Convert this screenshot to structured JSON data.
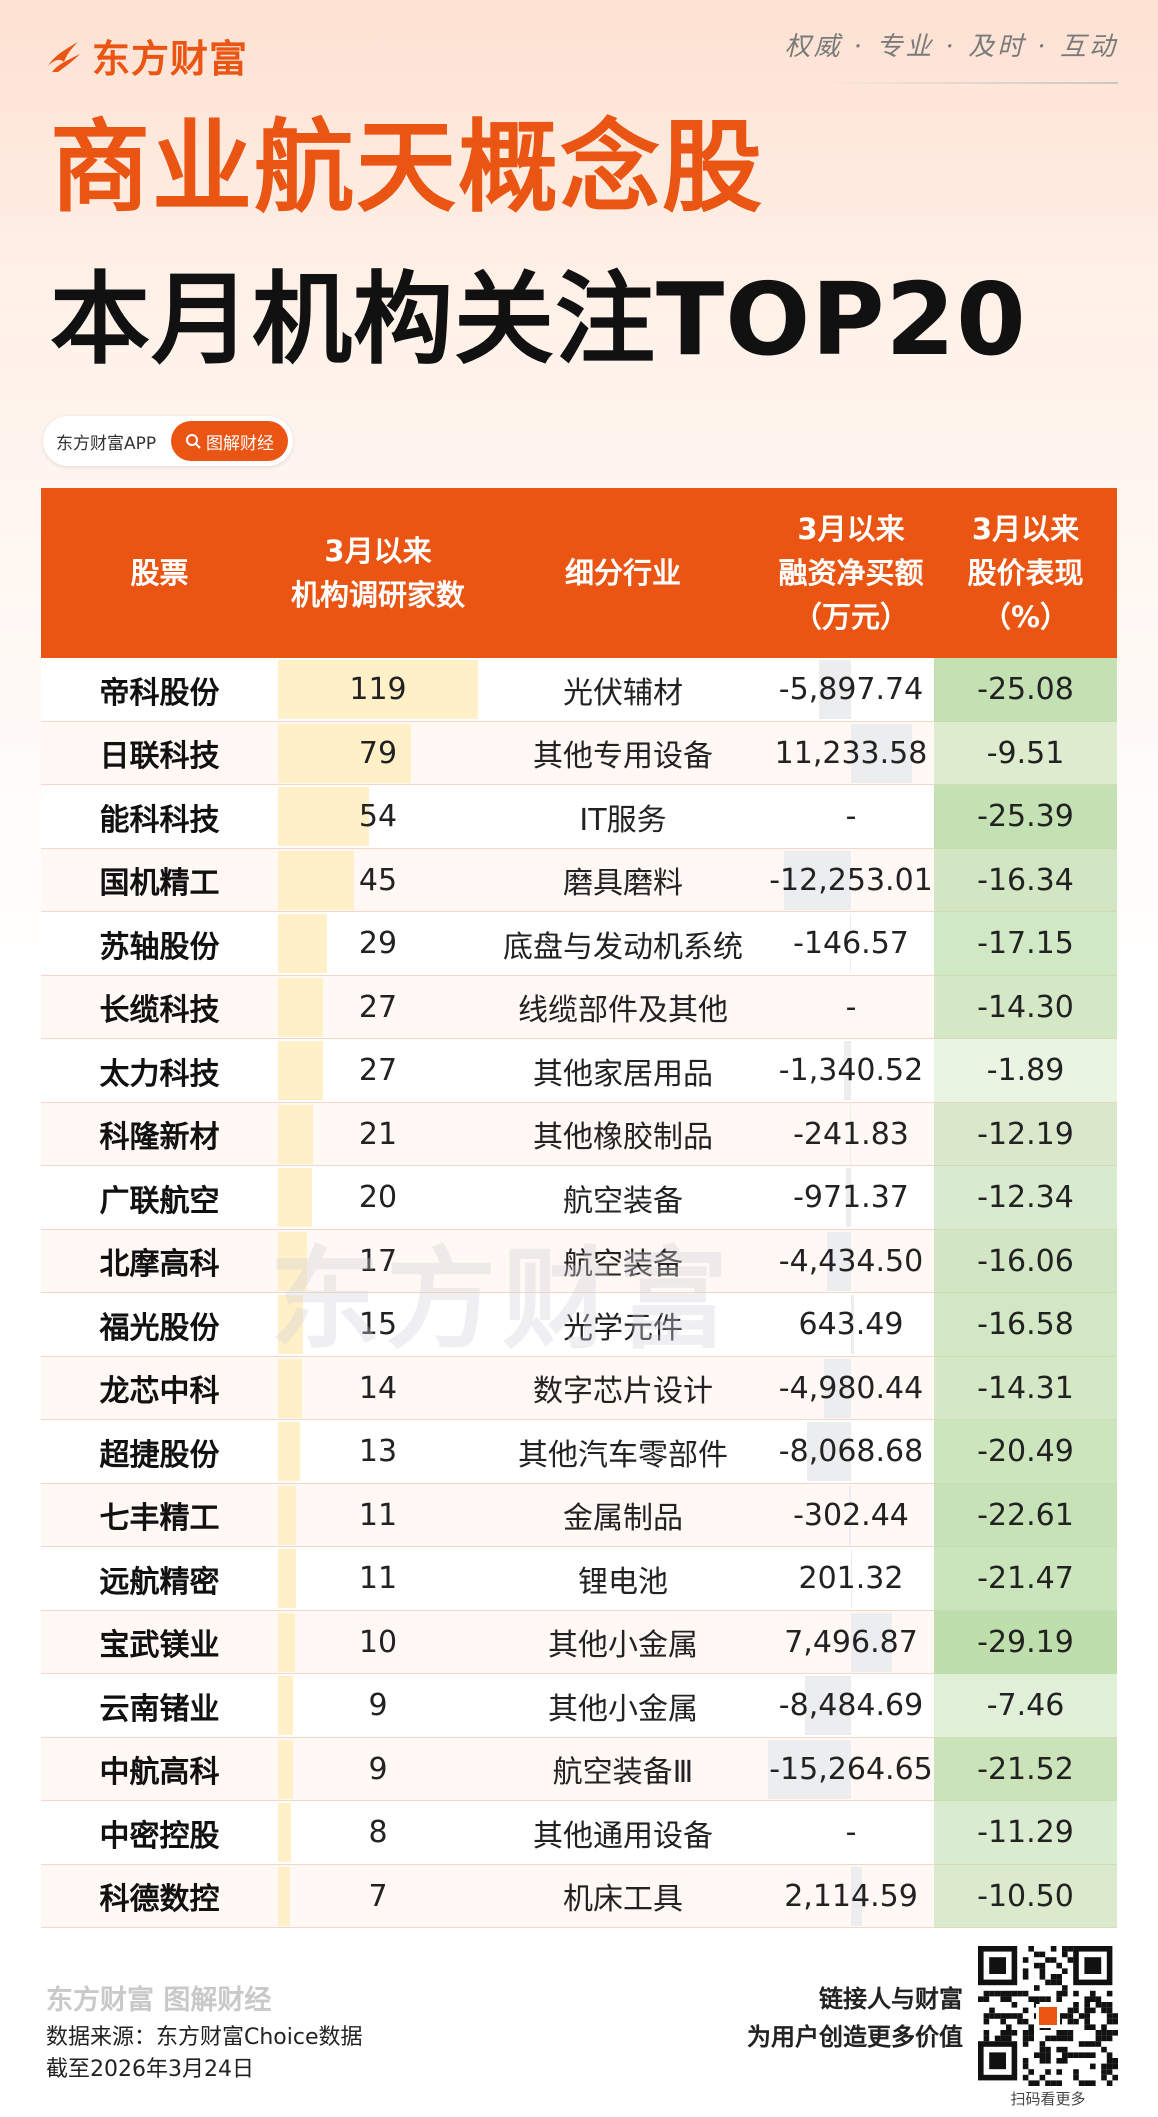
{
  "brand": {
    "name": "东方财富",
    "slogan": "权威 · 专业 · 及时 · 互动"
  },
  "title": {
    "line1": "商业航天概念股",
    "line2": "本月机构关注TOP20"
  },
  "search": {
    "app_label": "东方财富APP",
    "button_label": "图解财经"
  },
  "table": {
    "headers": {
      "stock": "股票",
      "inst_line1": "3月以来",
      "inst_line2": "机构调研家数",
      "industry": "细分行业",
      "fin_line1": "3月以来",
      "fin_line2": "融资净买额",
      "fin_line3": "（万元）",
      "perf_line1": "3月以来",
      "perf_line2": "股价表现",
      "perf_line3": "（%）"
    },
    "rows": [
      {
        "name": "帝科股份",
        "inst": "119",
        "industry": "光伏辅材",
        "fin": "-5,897.74",
        "perf": "-25.08"
      },
      {
        "name": "日联科技",
        "inst": "79",
        "industry": "其他专用设备",
        "fin": "11,233.58",
        "perf": "-9.51"
      },
      {
        "name": "能科科技",
        "inst": "54",
        "industry": "IT服务",
        "fin": "-",
        "perf": "-25.39"
      },
      {
        "name": "国机精工",
        "inst": "45",
        "industry": "磨具磨料",
        "fin": "-12,253.01",
        "perf": "-16.34"
      },
      {
        "name": "苏轴股份",
        "inst": "29",
        "industry": "底盘与发动机系统",
        "fin": "-146.57",
        "perf": "-17.15"
      },
      {
        "name": "长缆科技",
        "inst": "27",
        "industry": "线缆部件及其他",
        "fin": "-",
        "perf": "-14.30"
      },
      {
        "name": "太力科技",
        "inst": "27",
        "industry": "其他家居用品",
        "fin": "-1,340.52",
        "perf": "-1.89"
      },
      {
        "name": "科隆新材",
        "inst": "21",
        "industry": "其他橡胶制品",
        "fin": "-241.83",
        "perf": "-12.19"
      },
      {
        "name": "广联航空",
        "inst": "20",
        "industry": "航空装备",
        "fin": "-971.37",
        "perf": "-12.34"
      },
      {
        "name": "北摩高科",
        "inst": "17",
        "industry": "航空装备",
        "fin": "-4,434.50",
        "perf": "-16.06"
      },
      {
        "name": "福光股份",
        "inst": "15",
        "industry": "光学元件",
        "fin": "643.49",
        "perf": "-16.58"
      },
      {
        "name": "龙芯中科",
        "inst": "14",
        "industry": "数字芯片设计",
        "fin": "-4,980.44",
        "perf": "-14.31"
      },
      {
        "name": "超捷股份",
        "inst": "13",
        "industry": "其他汽车零部件",
        "fin": "-8,068.68",
        "perf": "-20.49"
      },
      {
        "name": "七丰精工",
        "inst": "11",
        "industry": "金属制品",
        "fin": "-302.44",
        "perf": "-22.61"
      },
      {
        "name": "远航精密",
        "inst": "11",
        "industry": "锂电池",
        "fin": "201.32",
        "perf": "-21.47"
      },
      {
        "name": "宝武镁业",
        "inst": "10",
        "industry": "其他小金属",
        "fin": "7,496.87",
        "perf": "-29.19"
      },
      {
        "name": "云南锗业",
        "inst": "9",
        "industry": "其他小金属",
        "fin": "-8,484.69",
        "perf": "-7.46"
      },
      {
        "name": "中航高科",
        "inst": "9",
        "industry": "航空装备Ⅲ",
        "fin": "-15,264.65",
        "perf": "-21.52"
      },
      {
        "name": "中密控股",
        "inst": "8",
        "industry": "其他通用设备",
        "fin": "-",
        "perf": "-11.29"
      },
      {
        "name": "科德数控",
        "inst": "7",
        "industry": "机床工具",
        "fin": "2,114.59",
        "perf": "-10.50"
      }
    ]
  },
  "chart_data": {
    "type": "table",
    "columns": [
      "股票",
      "3月以来机构调研家数",
      "细分行业",
      "3月以来融资净买额（万元）",
      "3月以来股价表现（%）"
    ],
    "stocks": [
      "帝科股份",
      "日联科技",
      "能科科技",
      "国机精工",
      "苏轴股份",
      "长缆科技",
      "太力科技",
      "科隆新材",
      "广联航空",
      "北摩高科",
      "福光股份",
      "龙芯中科",
      "超捷股份",
      "七丰精工",
      "远航精密",
      "宝武镁业",
      "云南锗业",
      "中航高科",
      "中密控股",
      "科德数控"
    ],
    "institution_visits": [
      119,
      79,
      54,
      45,
      29,
      27,
      27,
      21,
      20,
      17,
      15,
      14,
      13,
      11,
      11,
      10,
      9,
      9,
      8,
      7
    ],
    "net_margin_buy": [
      -5897.74,
      11233.58,
      null,
      -12253.01,
      -146.57,
      null,
      -1340.52,
      -241.83,
      -971.37,
      -4434.5,
      643.49,
      -4980.44,
      -8068.68,
      -302.44,
      201.32,
      7496.87,
      -8484.69,
      -15264.65,
      null,
      2114.59
    ],
    "price_change_pct": [
      -25.08,
      -9.51,
      -25.39,
      -16.34,
      -17.15,
      -14.3,
      -1.89,
      -12.19,
      -12.34,
      -16.06,
      -16.58,
      -14.31,
      -20.49,
      -22.61,
      -21.47,
      -29.19,
      -7.46,
      -21.52,
      -11.29,
      -10.5
    ]
  },
  "footer": {
    "logo_text": "东方财富 图解财经",
    "source": "数据来源：东方财富Choice数据",
    "date": "截至2026年3月24日",
    "tagline1": "链接人与财富",
    "tagline2": "为用户创造更多价值",
    "qr_caption": "扫码看更多"
  },
  "watermark": "东方财富",
  "colors": {
    "accent": "#ea5514",
    "inst_bar": "#fff0c8",
    "fin_bar": "#ecedef",
    "perf_green": "#cfe6c2"
  }
}
